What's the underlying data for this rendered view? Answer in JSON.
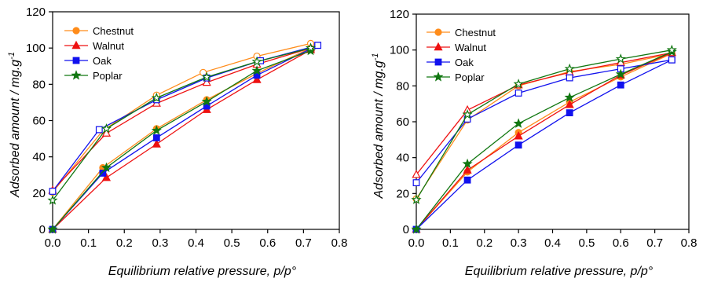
{
  "chart_data": [
    {
      "type": "line",
      "title": "",
      "xlabel": "Equilibrium relative pressure, p/p°",
      "ylabel_main": "Adsorbed amount / mg.g",
      "ylabel_sup": "-1",
      "xlim": [
        0.0,
        0.8
      ],
      "ylim": [
        0,
        120
      ],
      "xticks": [
        0.0,
        0.1,
        0.2,
        0.3,
        0.4,
        0.5,
        0.6,
        0.7,
        0.8
      ],
      "xtick_labels": [
        "0.0",
        "0.1",
        "0.2",
        "0.3",
        "0.4",
        "0.5",
        "0.6",
        "0.7",
        "0.8"
      ],
      "yticks": [
        0,
        20,
        40,
        60,
        80,
        100,
        120
      ],
      "ytick_labels": [
        "0",
        "20",
        "40",
        "60",
        "80",
        "100",
        "120"
      ],
      "legend_position": "top-left",
      "grid": false,
      "series": [
        {
          "name": "Chestnut",
          "color": "#FF8C1A",
          "marker": "circle",
          "adsorption": [
            [
              0.0,
              0
            ],
            [
              0.14,
              34
            ],
            [
              0.29,
              55.5
            ],
            [
              0.43,
              71.5
            ],
            [
              0.57,
              86
            ],
            [
              0.72,
              100
            ]
          ],
          "desorption": [
            [
              0.72,
              102.5
            ],
            [
              0.57,
              95.5
            ],
            [
              0.42,
              86.5
            ],
            [
              0.29,
              74
            ],
            [
              0.14,
              54.5
            ],
            [
              0.0,
              20.5
            ]
          ]
        },
        {
          "name": "Walnut",
          "color": "#EE1111",
          "marker": "triangle",
          "adsorption": [
            [
              0.0,
              0
            ],
            [
              0.15,
              28.5
            ],
            [
              0.29,
              47
            ],
            [
              0.43,
              66
            ],
            [
              0.57,
              82.5
            ],
            [
              0.72,
              99
            ]
          ],
          "desorption": [
            [
              0.72,
              100
            ],
            [
              0.57,
              91
            ],
            [
              0.43,
              81
            ],
            [
              0.29,
              69.5
            ],
            [
              0.15,
              53
            ],
            [
              0.0,
              21.5
            ]
          ]
        },
        {
          "name": "Oak",
          "color": "#1111EE",
          "marker": "square",
          "adsorption": [
            [
              0.0,
              0
            ],
            [
              0.14,
              31
            ],
            [
              0.29,
              50.5
            ],
            [
              0.43,
              68
            ],
            [
              0.57,
              85
            ],
            [
              0.74,
              101.5
            ]
          ],
          "desorption": [
            [
              0.74,
              101.5
            ],
            [
              0.58,
              93
            ],
            [
              0.43,
              83.5
            ],
            [
              0.29,
              71.5
            ],
            [
              0.13,
              55
            ],
            [
              0.0,
              21
            ]
          ]
        },
        {
          "name": "Poplar",
          "color": "#117711",
          "marker": "star",
          "adsorption": [
            [
              0.0,
              0
            ],
            [
              0.15,
              34
            ],
            [
              0.29,
              54.5
            ],
            [
              0.43,
              70.5
            ],
            [
              0.57,
              87.5
            ],
            [
              0.72,
              98.5
            ]
          ],
          "desorption": [
            [
              0.72,
              100
            ],
            [
              0.57,
              92.5
            ],
            [
              0.43,
              84
            ],
            [
              0.29,
              72.5
            ],
            [
              0.15,
              55.5
            ],
            [
              0.0,
              16
            ]
          ]
        }
      ]
    },
    {
      "type": "line",
      "title": "",
      "xlabel": "Equilibrium relative pressure, p/p°",
      "ylabel_main": "Adsorbed amount / mg.g",
      "ylabel_sup": "-1",
      "xlim": [
        0.0,
        0.8
      ],
      "ylim": [
        0,
        120
      ],
      "xticks": [
        0.0,
        0.1,
        0.2,
        0.3,
        0.4,
        0.5,
        0.6,
        0.7,
        0.8
      ],
      "xtick_labels": [
        "0.0",
        "0.1",
        "0.2",
        "0.3",
        "0.4",
        "0.5",
        "0.6",
        "0.7",
        "0.8"
      ],
      "yticks": [
        0,
        20,
        40,
        60,
        80,
        100,
        120
      ],
      "ytick_labels": [
        "0",
        "20",
        "40",
        "60",
        "80",
        "100",
        "120"
      ],
      "legend_position": "top-left",
      "grid": false,
      "series": [
        {
          "name": "Chestnut",
          "color": "#FF8C1A",
          "marker": "circle",
          "adsorption": [
            [
              0.0,
              0
            ],
            [
              0.15,
              32
            ],
            [
              0.3,
              54
            ],
            [
              0.45,
              71
            ],
            [
              0.6,
              85
            ],
            [
              0.75,
              98
            ]
          ],
          "desorption": [
            [
              0.75,
              98
            ],
            [
              0.6,
              92
            ],
            [
              0.45,
              88
            ],
            [
              0.3,
              80
            ],
            [
              0.15,
              61
            ],
            [
              0.0,
              17
            ]
          ]
        },
        {
          "name": "Walnut",
          "color": "#EE1111",
          "marker": "triangle",
          "adsorption": [
            [
              0.0,
              0
            ],
            [
              0.15,
              33
            ],
            [
              0.3,
              52
            ],
            [
              0.45,
              69.5
            ],
            [
              0.6,
              86
            ],
            [
              0.75,
              98.5
            ]
          ],
          "desorption": [
            [
              0.75,
              98.5
            ],
            [
              0.6,
              93
            ],
            [
              0.45,
              87.5
            ],
            [
              0.3,
              80.5
            ],
            [
              0.15,
              66.5
            ],
            [
              0.0,
              30.5
            ]
          ]
        },
        {
          "name": "Oak",
          "color": "#1111EE",
          "marker": "square",
          "adsorption": [
            [
              0.0,
              0
            ],
            [
              0.15,
              27.5
            ],
            [
              0.3,
              47
            ],
            [
              0.45,
              65
            ],
            [
              0.6,
              80.5
            ],
            [
              0.75,
              94.5
            ]
          ],
          "desorption": [
            [
              0.75,
              94.5
            ],
            [
              0.6,
              89.5
            ],
            [
              0.45,
              84.5
            ],
            [
              0.3,
              76
            ],
            [
              0.15,
              61.5
            ],
            [
              0.0,
              26
            ]
          ]
        },
        {
          "name": "Poplar",
          "color": "#117711",
          "marker": "star",
          "adsorption": [
            [
              0.0,
              0
            ],
            [
              0.15,
              36.5
            ],
            [
              0.3,
              59
            ],
            [
              0.45,
              73.5
            ],
            [
              0.6,
              86.5
            ],
            [
              0.75,
              99
            ]
          ],
          "desorption": [
            [
              0.75,
              100
            ],
            [
              0.6,
              95
            ],
            [
              0.45,
              89.5
            ],
            [
              0.3,
              81
            ],
            [
              0.15,
              64
            ],
            [
              0.0,
              16.5
            ]
          ]
        }
      ]
    }
  ]
}
